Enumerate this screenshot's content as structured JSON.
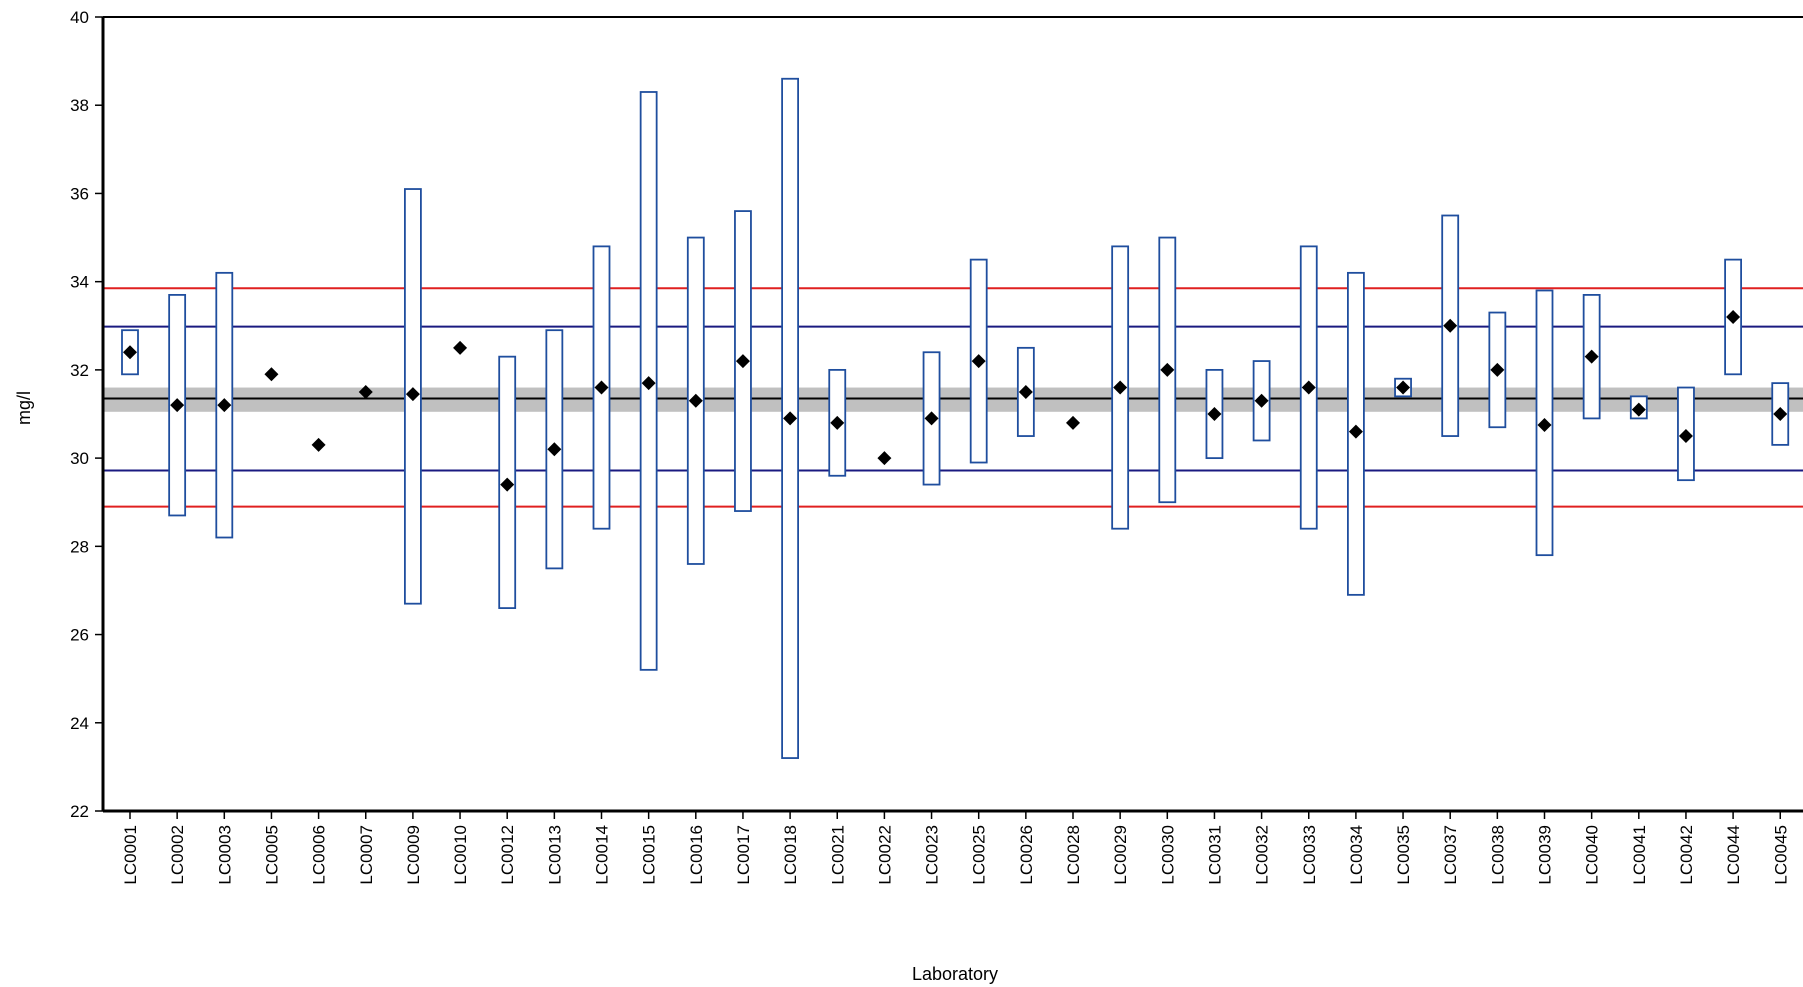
{
  "chart_data": {
    "type": "scatter",
    "title": "",
    "xlabel": "Laboratory",
    "ylabel": "mg/l",
    "ylim": [
      22,
      40
    ],
    "yticks": [
      22,
      24,
      26,
      28,
      30,
      32,
      34,
      36,
      38,
      40
    ],
    "assigned_value": 31.35,
    "uncertainty_band": [
      31.05,
      31.6
    ],
    "inner_limits": [
      29.72,
      32.98
    ],
    "outer_limits": [
      28.9,
      33.85
    ],
    "grid": false,
    "legend": "none",
    "colors": {
      "marker": "#000000",
      "uncertainty_box": "#1f4e9e",
      "inner_limit": "#1a1a80",
      "outer_limit": "#e02020",
      "band": "#c0c0c0",
      "assigned_line": "#000000"
    },
    "series": [
      {
        "labs": [
          "LC0001",
          "LC0002",
          "LC0003",
          "LC0005",
          "LC0006",
          "LC0007",
          "LC0009",
          "LC0010",
          "LC0012",
          "LC0013",
          "LC0014",
          "LC0015",
          "LC0016",
          "LC0017",
          "LC0018",
          "LC0021",
          "LC0022",
          "LC0023",
          "LC0025",
          "LC0026",
          "LC0028",
          "LC0029",
          "LC0030",
          "LC0031",
          "LC0032",
          "LC0033",
          "LC0034",
          "LC0035",
          "LC0037",
          "LC0038",
          "LC0039",
          "LC0040",
          "LC0041",
          "LC0042",
          "LC0044",
          "LC0045"
        ],
        "values": [
          32.4,
          31.2,
          31.2,
          31.9,
          30.3,
          31.5,
          31.45,
          32.5,
          29.4,
          30.2,
          31.6,
          31.7,
          31.3,
          32.2,
          30.9,
          30.8,
          30.0,
          30.9,
          32.2,
          31.5,
          30.8,
          31.6,
          32.0,
          31.0,
          31.3,
          31.6,
          30.6,
          31.6,
          33.0,
          32.0,
          30.75,
          32.3,
          31.1,
          30.5,
          33.2,
          31.0
        ],
        "lower": [
          31.9,
          28.7,
          28.2,
          null,
          null,
          null,
          26.7,
          null,
          26.6,
          27.5,
          28.4,
          25.2,
          27.6,
          28.8,
          23.2,
          29.6,
          null,
          29.4,
          29.9,
          30.5,
          null,
          28.4,
          29.0,
          30.0,
          30.4,
          28.4,
          26.9,
          31.4,
          30.5,
          30.7,
          27.8,
          30.9,
          30.9,
          29.5,
          31.9,
          30.3
        ],
        "upper": [
          32.9,
          33.7,
          34.2,
          null,
          null,
          null,
          36.1,
          null,
          32.3,
          32.9,
          34.8,
          38.3,
          35.0,
          35.6,
          38.6,
          32.0,
          null,
          32.4,
          34.5,
          32.5,
          null,
          34.8,
          35.0,
          32.0,
          32.2,
          34.8,
          34.2,
          31.8,
          35.5,
          33.3,
          33.8,
          33.7,
          31.4,
          31.6,
          34.5,
          31.7
        ]
      }
    ]
  }
}
